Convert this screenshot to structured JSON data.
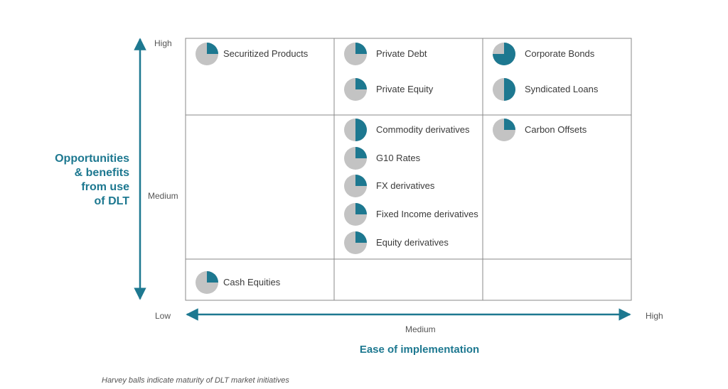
{
  "colors": {
    "accent": "#1d7890",
    "ball_empty": "#c3c3c3",
    "grid": "#8a8a8a"
  },
  "y_axis": {
    "title_lines": [
      "Opportunities",
      "& benefits",
      "from use",
      "of DLT"
    ],
    "ticks": {
      "high": "High",
      "medium": "Medium"
    }
  },
  "x_axis": {
    "title": "Ease of implementation",
    "ticks": {
      "low": "Low",
      "medium": "Medium",
      "high": "High"
    }
  },
  "footnote": "Harvey balls indicate maturity of DLT market initiatives",
  "items": [
    {
      "label": "Securitized Products",
      "maturity": 0.25,
      "col": 0,
      "row": 0,
      "slot": 0
    },
    {
      "label": "Private Debt",
      "maturity": 0.25,
      "col": 1,
      "row": 0,
      "slot": 0
    },
    {
      "label": "Private Equity",
      "maturity": 0.25,
      "col": 1,
      "row": 0,
      "slot": 1
    },
    {
      "label": "Corporate Bonds",
      "maturity": 0.75,
      "col": 2,
      "row": 0,
      "slot": 0
    },
    {
      "label": "Syndicated Loans",
      "maturity": 0.5,
      "col": 2,
      "row": 0,
      "slot": 1
    },
    {
      "label": "Commodity derivatives",
      "maturity": 0.5,
      "col": 1,
      "row": 1,
      "slot": 0
    },
    {
      "label": "G10 Rates",
      "maturity": 0.25,
      "col": 1,
      "row": 1,
      "slot": 1
    },
    {
      "label": "FX derivatives",
      "maturity": 0.25,
      "col": 1,
      "row": 1,
      "slot": 2
    },
    {
      "label": "Fixed Income derivatives",
      "maturity": 0.25,
      "col": 1,
      "row": 1,
      "slot": 3
    },
    {
      "label": "Equity derivatives",
      "maturity": 0.25,
      "col": 1,
      "row": 1,
      "slot": 4
    },
    {
      "label": "Carbon Offsets",
      "maturity": 0.25,
      "col": 2,
      "row": 1,
      "slot": 0
    },
    {
      "label": "Cash Equities",
      "maturity": 0.25,
      "col": 0,
      "row": 2,
      "slot": 0
    }
  ]
}
